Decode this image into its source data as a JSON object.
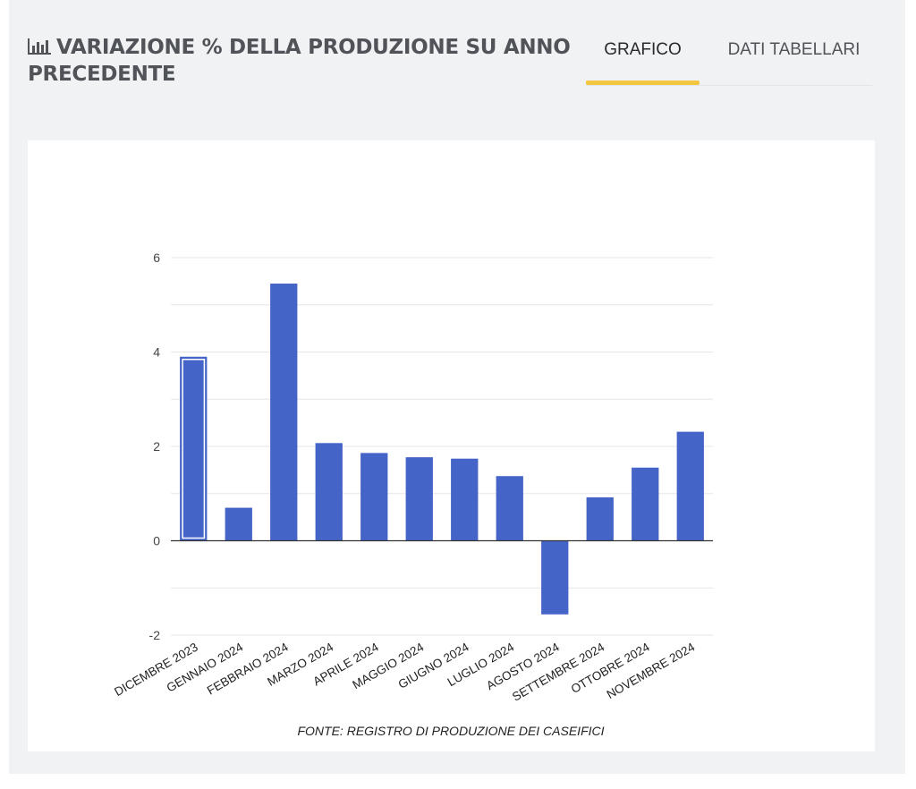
{
  "header": {
    "title": "VARIAZIONE % DELLA PRODUZIONE SU ANNO PRECEDENTE",
    "icon": "bar-chart-icon"
  },
  "tabs": [
    {
      "label": "GRAFICO",
      "active": true
    },
    {
      "label": "DATI TABELLARI",
      "active": false
    }
  ],
  "colors": {
    "bar": "#4464c8",
    "accent": "#f2c641",
    "title": "#505358",
    "panel_bg": "#f1f2f4"
  },
  "chart_data": {
    "type": "bar",
    "categories": [
      "DICEMBRE 2023",
      "GENNAIO 2024",
      "FEBBRAIO 2024",
      "MARZO 2024",
      "APRILE 2024",
      "MAGGIO 2024",
      "GIUGNO 2024",
      "LUGLIO 2024",
      "AGOSTO 2024",
      "SETTEMBRE 2024",
      "OTTOBRE 2024",
      "NOVEMBRE 2024"
    ],
    "values": [
      3.9,
      0.7,
      5.45,
      2.07,
      1.86,
      1.77,
      1.74,
      1.37,
      -1.56,
      0.92,
      1.55,
      2.31
    ],
    "yticks": [
      -2,
      0,
      2,
      4,
      6
    ],
    "ylim": [
      -2,
      6
    ],
    "grid": true,
    "highlighted_index": 0,
    "source": "FONTE: REGISTRO DI PRODUZIONE DEI CASEIFICI"
  }
}
